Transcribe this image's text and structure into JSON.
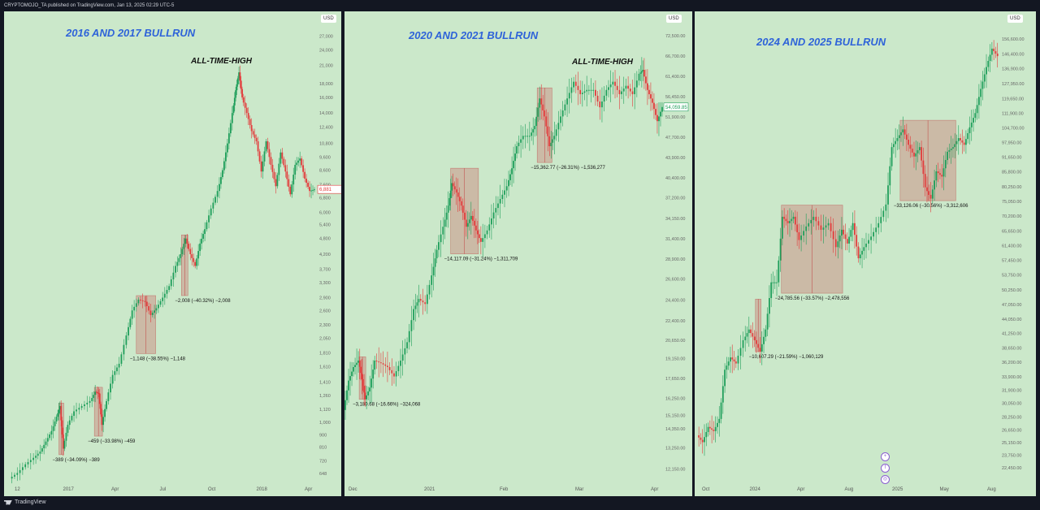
{
  "header": {
    "publish_line": "CRYPTOMOJO_TA published on TradingView.com, Jan 13, 2025 02:29 UTC-5"
  },
  "footer": {
    "brand": "TradingView"
  },
  "currency": "USD",
  "colors": {
    "background": "#cbe8ca",
    "up": "#1e9e5a",
    "down": "#e23b3b",
    "box": "rgba(200,90,90,0.32)",
    "title": "#2e63d9"
  },
  "panels": [
    {
      "title": "2016 AND 2017 BULLRUN",
      "annotation": "ALL-TIME-HIGH",
      "price_tag": "6,881"
    },
    {
      "title": "2020 AND 2021 BULLRUN",
      "annotation": "ALL-TIME-HIGH",
      "price_tag": "54,059.85"
    },
    {
      "title": "2024 AND 2025 BULLRUN",
      "annotation": "",
      "price_tag": ""
    }
  ],
  "side_icons": [
    "+",
    "f",
    "◎"
  ],
  "chart_data": [
    {
      "type": "line",
      "title": "2016 AND 2017 BULLRUN",
      "y_scale": "log",
      "ylim": [
        600,
        29000
      ],
      "y_ticks": [
        "648",
        "720",
        "810",
        "900",
        "1,000",
        "1,120",
        "1,260",
        "1,410",
        "1,610",
        "1,810",
        "2,050",
        "2,300",
        "2,600",
        "2,900",
        "3,300",
        "3,700",
        "4,200",
        "4,800",
        "5,400",
        "6,000",
        "6,800",
        "7,600",
        "8,600",
        "9,600",
        "10,800",
        "12,400",
        "14,000",
        "16,000",
        "18,000",
        "21,000",
        "24,000",
        "27,000"
      ],
      "x_ticks": [
        "12",
        "2017",
        "Apr",
        "Jul",
        "Oct",
        "2018",
        "Apr"
      ],
      "x_range": [
        0,
        380
      ],
      "series": [
        {
          "values": [
            [
              0,
              620
            ],
            [
              10,
              650
            ],
            [
              20,
              700
            ],
            [
              30,
              740
            ],
            [
              38,
              780
            ],
            [
              45,
              850
            ],
            [
              52,
              930
            ],
            [
              58,
              1050
            ],
            [
              62,
              1150
            ],
            [
              66,
              800
            ],
            [
              72,
              980
            ],
            [
              80,
              1100
            ],
            [
              90,
              1150
            ],
            [
              100,
              1200
            ],
            [
              106,
              1300
            ],
            [
              110,
              1280
            ],
            [
              114,
              980
            ],
            [
              120,
              1200
            ],
            [
              128,
              1500
            ],
            [
              136,
              1650
            ],
            [
              145,
              2100
            ],
            [
              152,
              2600
            ],
            [
              160,
              2850
            ],
            [
              168,
              2800
            ],
            [
              175,
              2500
            ],
            [
              182,
              2650
            ],
            [
              190,
              2900
            ],
            [
              198,
              3200
            ],
            [
              206,
              3800
            ],
            [
              212,
              4200
            ],
            [
              218,
              4800
            ],
            [
              224,
              4200
            ],
            [
              230,
              3800
            ],
            [
              236,
              4600
            ],
            [
              242,
              5200
            ],
            [
              250,
              6200
            ],
            [
              258,
              7200
            ],
            [
              264,
              8600
            ],
            [
              270,
              10800
            ],
            [
              276,
              14000
            ],
            [
              280,
              17000
            ],
            [
              284,
              19800
            ],
            [
              288,
              16000
            ],
            [
              294,
              14000
            ],
            [
              300,
              12000
            ],
            [
              306,
              11000
            ],
            [
              312,
              8500
            ],
            [
              318,
              11000
            ],
            [
              324,
              9000
            ],
            [
              330,
              7500
            ],
            [
              336,
              10000
            ],
            [
              342,
              8500
            ],
            [
              348,
              7000
            ],
            [
              354,
              9000
            ],
            [
              360,
              9500
            ],
            [
              366,
              8000
            ],
            [
              372,
              7200
            ],
            [
              378,
              7300
            ]
          ]
        }
      ],
      "corrections": [
        {
          "label": "−389 (−34.09%) −389",
          "x_from": 60,
          "x_to": 66,
          "top": 1180,
          "bottom": 760
        },
        {
          "label": "−459 (−33.98%) −459",
          "x_from": 104,
          "x_to": 114,
          "top": 1350,
          "bottom": 890
        },
        {
          "label": "−1,148 (−38.55%) −1,148",
          "x_from": 156,
          "x_to": 180,
          "top": 2950,
          "bottom": 1800
        },
        {
          "label": "−2,008 (−40.32%) −2,008",
          "x_from": 212,
          "x_to": 220,
          "top": 4950,
          "bottom": 2950
        }
      ]
    },
    {
      "type": "line",
      "title": "2020 AND 2021 BULLRUN",
      "y_scale": "log",
      "ylim": [
        11500,
        75000
      ],
      "y_ticks": [
        "12,150.00",
        "13,250.00",
        "14,350.00",
        "15,150.00",
        "16,250.00",
        "17,650.00",
        "19,150.00",
        "20,650.00",
        "22,400.00",
        "24,400.00",
        "26,600.00",
        "28,900.00",
        "31,400.00",
        "34,150.00",
        "37,200.00",
        "40,400.00",
        "43,900.00",
        "47,700.00",
        "51,900.00",
        "56,450.00",
        "61,400.00",
        "66,700.00",
        "72,500.00"
      ],
      "x_ticks": [
        "Dec",
        "2021",
        "Feb",
        "Mar",
        "Apr"
      ],
      "x_range": [
        0,
        390
      ],
      "series": [
        {
          "values": [
            [
              0,
              15500
            ],
            [
              6,
              17500
            ],
            [
              12,
              18500
            ],
            [
              18,
              19000
            ],
            [
              22,
              17600
            ],
            [
              26,
              16200
            ],
            [
              32,
              17000
            ],
            [
              38,
              19000
            ],
            [
              46,
              18800
            ],
            [
              54,
              18500
            ],
            [
              62,
              17800
            ],
            [
              70,
              19000
            ],
            [
              78,
              20500
            ],
            [
              86,
              23500
            ],
            [
              92,
              24500
            ],
            [
              100,
              24000
            ],
            [
              108,
              27000
            ],
            [
              114,
              30000
            ],
            [
              122,
              33000
            ],
            [
              128,
              36000
            ],
            [
              132,
              39500
            ],
            [
              138,
              38000
            ],
            [
              144,
              36000
            ],
            [
              150,
              33000
            ],
            [
              156,
              34500
            ],
            [
              162,
              32500
            ],
            [
              168,
              31000
            ],
            [
              176,
              32500
            ],
            [
              184,
              35000
            ],
            [
              192,
              37000
            ],
            [
              200,
              39000
            ],
            [
              206,
              42000
            ],
            [
              212,
              46000
            ],
            [
              220,
              48000
            ],
            [
              228,
              48000
            ],
            [
              234,
              50000
            ],
            [
              240,
              56000
            ],
            [
              246,
              52000
            ],
            [
              252,
              46000
            ],
            [
              258,
              48000
            ],
            [
              266,
              52000
            ],
            [
              274,
              56000
            ],
            [
              282,
              60000
            ],
            [
              290,
              57000
            ],
            [
              298,
              58000
            ],
            [
              306,
              58000
            ],
            [
              314,
              54000
            ],
            [
              322,
              58000
            ],
            [
              330,
              60000
            ],
            [
              338,
              57000
            ],
            [
              346,
              59000
            ],
            [
              354,
              57000
            ],
            [
              362,
              62000
            ],
            [
              366,
              63000
            ],
            [
              372,
              58000
            ],
            [
              378,
              55000
            ],
            [
              384,
              51000
            ],
            [
              390,
              54060
            ]
          ]
        }
      ],
      "corrections": [
        {
          "label": "−3,180.68 (−16.66%) −324,068",
          "x_from": 18,
          "x_to": 26,
          "top": 19300,
          "bottom": 16200
        },
        {
          "label": "−14,117.09 (−31.24%) −1,311,709",
          "x_from": 130,
          "x_to": 164,
          "top": 42000,
          "bottom": 29500
        },
        {
          "label": "−15,362.77 (−26.31%) −1,536,277",
          "x_from": 236,
          "x_to": 254,
          "top": 58500,
          "bottom": 43000
        }
      ]
    },
    {
      "type": "line",
      "title": "2024 AND 2025 BULLRUN",
      "y_scale": "log",
      "ylim": [
        21000,
        165000
      ],
      "y_ticks": [
        "22,450.00",
        "23,750.00",
        "25,150.00",
        "26,650.00",
        "28,250.00",
        "30,050.00",
        "31,900.00",
        "33,900.00",
        "36,200.00",
        "38,650.00",
        "41,250.00",
        "44,050.00",
        "47,050.00",
        "50,250.00",
        "53,750.00",
        "57,450.00",
        "61,400.00",
        "65,650.00",
        "70,200.00",
        "75,050.00",
        "80,250.00",
        "85,800.00",
        "91,650.00",
        "97,950.00",
        "104,700.00",
        "111,900.00",
        "119,650.00",
        "127,950.00",
        "136,900.00",
        "146,400.00",
        "156,600.00"
      ],
      "x_ticks": [
        "Oct",
        "2024",
        "Apr",
        "Aug",
        "2025",
        "May",
        "Aug"
      ],
      "x_range": [
        0,
        325
      ],
      "series": [
        {
          "values": [
            [
              0,
              26000
            ],
            [
              6,
              25200
            ],
            [
              12,
              27000
            ],
            [
              18,
              26500
            ],
            [
              24,
              28000
            ],
            [
              30,
              35000
            ],
            [
              36,
              37000
            ],
            [
              42,
              36000
            ],
            [
              50,
              40000
            ],
            [
              56,
              42000
            ],
            [
              62,
              40000
            ],
            [
              68,
              38000
            ],
            [
              74,
              42000
            ],
            [
              80,
              52000
            ],
            [
              86,
              52000
            ],
            [
              92,
              70000
            ],
            [
              98,
              68000
            ],
            [
              104,
              70000
            ],
            [
              110,
              63000
            ],
            [
              118,
              67000
            ],
            [
              126,
              70000
            ],
            [
              134,
              66000
            ],
            [
              142,
              68000
            ],
            [
              150,
              61000
            ],
            [
              156,
              66000
            ],
            [
              162,
              62000
            ],
            [
              168,
              68000
            ],
            [
              174,
              58000
            ],
            [
              180,
              61000
            ],
            [
              188,
              64000
            ],
            [
              196,
              68000
            ],
            [
              204,
              74000
            ],
            [
              210,
              96000
            ],
            [
              216,
              100000
            ],
            [
              222,
              104000
            ],
            [
              228,
              97000
            ],
            [
              234,
              92000
            ],
            [
              240,
              96000
            ],
            [
              246,
              80000
            ],
            [
              252,
              76000
            ],
            [
              258,
              86000
            ],
            [
              264,
              84000
            ],
            [
              270,
              94000
            ],
            [
              276,
              96000
            ],
            [
              282,
              100000
            ],
            [
              288,
              97000
            ],
            [
              294,
              105000
            ],
            [
              300,
              112000
            ],
            [
              306,
              125000
            ],
            [
              312,
              138000
            ],
            [
              318,
              150000
            ],
            [
              324,
              145000
            ]
          ]
        }
      ],
      "corrections": [
        {
          "label": "−10,607.29 (−21.59%) −1,060,129",
          "x_from": 62,
          "x_to": 68,
          "top": 48200,
          "bottom": 38000
        },
        {
          "label": "−24,785.56 (−33.57%) −2,478,556",
          "x_from": 90,
          "x_to": 156,
          "top": 73800,
          "bottom": 49500
        },
        {
          "label": "−33,126.06 (−30.56%) −3,312,606",
          "x_from": 218,
          "x_to": 278,
          "top": 108400,
          "bottom": 75300
        }
      ]
    }
  ]
}
